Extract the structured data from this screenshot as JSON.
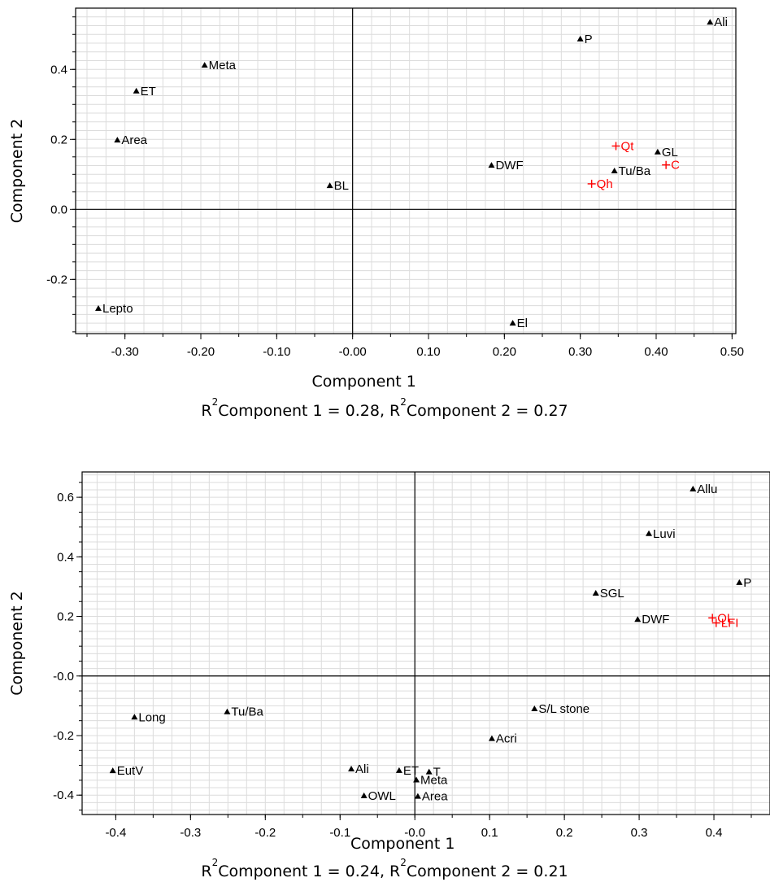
{
  "chart_data": [
    {
      "type": "scatter",
      "xlabel": "Component 1",
      "ylabel": "Component 2",
      "xlim": [
        -0.365,
        0.505
      ],
      "ylim": [
        -0.355,
        0.575
      ],
      "xticks": [
        "-0.30",
        "-0.20",
        "-0.10",
        "-0.00",
        "0.10",
        "0.20",
        "0.30",
        "0.40",
        "0.50"
      ],
      "xtick_values": [
        -0.3,
        -0.2,
        -0.1,
        0.0,
        0.1,
        0.2,
        0.3,
        0.4,
        0.5
      ],
      "yticks": [
        "0.4",
        "0.2",
        "0.0",
        "-0.2"
      ],
      "ytick_values": [
        0.4,
        0.2,
        0.0,
        -0.2
      ],
      "grid": true,
      "caption": {
        "r": "R",
        "sup": "2",
        "part1": "Component 1 = 0.28, R",
        "sup2": "2",
        "part2": "Component 2 = 0.27"
      },
      "series": [
        {
          "marker": "triangle",
          "color": "#000000",
          "points": [
            {
              "label": "Ali",
              "x": 0.471,
              "y": 0.535
            },
            {
              "label": "P",
              "x": 0.3,
              "y": 0.487
            },
            {
              "label": "Meta",
              "x": -0.195,
              "y": 0.412
            },
            {
              "label": "ET",
              "x": -0.285,
              "y": 0.338
            },
            {
              "label": "Area",
              "x": -0.31,
              "y": 0.198
            },
            {
              "label": "GL",
              "x": 0.402,
              "y": 0.164
            },
            {
              "label": "DWF",
              "x": 0.183,
              "y": 0.126
            },
            {
              "label": "Tu/Ba",
              "x": 0.345,
              "y": 0.11
            },
            {
              "label": "BL",
              "x": -0.03,
              "y": 0.068
            },
            {
              "label": "Lepto",
              "x": -0.335,
              "y": -0.283
            },
            {
              "label": "El",
              "x": 0.211,
              "y": -0.325
            }
          ]
        },
        {
          "marker": "plus",
          "color": "#ff0000",
          "points": [
            {
              "label": "Qt",
              "x": 0.347,
              "y": 0.181
            },
            {
              "label": "C",
              "x": 0.413,
              "y": 0.127
            },
            {
              "label": "Qh",
              "x": 0.315,
              "y": 0.073
            }
          ]
        }
      ]
    },
    {
      "type": "scatter",
      "xlabel": "Component 1",
      "ylabel": "Component 2",
      "xlim": [
        -0.445,
        0.475
      ],
      "ylim": [
        -0.465,
        0.685
      ],
      "xticks": [
        "-0.4",
        "-0.3",
        "-0.2",
        "-0.1",
        "-0.0",
        "0.1",
        "0.2",
        "0.3",
        "0.4"
      ],
      "xtick_values": [
        -0.4,
        -0.3,
        -0.2,
        -0.1,
        0.0,
        0.1,
        0.2,
        0.3,
        0.4
      ],
      "yticks": [
        "0.6",
        "0.4",
        "0.2",
        "-0.0",
        "-0.2",
        "-0.4"
      ],
      "ytick_values": [
        0.6,
        0.4,
        0.2,
        0.0,
        -0.2,
        -0.4
      ],
      "grid": true,
      "caption": {
        "r": "R",
        "sup": "2",
        "part1": "Component 1 = 0.24, R",
        "sup2": "2",
        "part2": "Component 2 = 0.21"
      },
      "series": [
        {
          "marker": "triangle",
          "color": "#000000",
          "points": [
            {
              "label": "Allu",
              "x": 0.372,
              "y": 0.628
            },
            {
              "label": "Luvi",
              "x": 0.313,
              "y": 0.478
            },
            {
              "label": "P",
              "x": 0.434,
              "y": 0.314
            },
            {
              "label": "SGL",
              "x": 0.242,
              "y": 0.278
            },
            {
              "label": "DWF",
              "x": 0.298,
              "y": 0.19
            },
            {
              "label": "S/L stone",
              "x": 0.16,
              "y": -0.11
            },
            {
              "label": "Acri",
              "x": 0.103,
              "y": -0.21
            },
            {
              "label": "Tu/Ba",
              "x": -0.251,
              "y": -0.12
            },
            {
              "label": "Long",
              "x": -0.375,
              "y": -0.138
            },
            {
              "label": "EutV",
              "x": -0.404,
              "y": -0.318
            },
            {
              "label": "Ali",
              "x": -0.085,
              "y": -0.312
            },
            {
              "label": "ET",
              "x": -0.021,
              "y": -0.317
            },
            {
              "label": "T",
              "x": 0.019,
              "y": -0.322
            },
            {
              "label": "Meta",
              "x": 0.002,
              "y": -0.349
            },
            {
              "label": "OWL",
              "x": -0.068,
              "y": -0.402
            },
            {
              "label": "Area",
              "x": 0.004,
              "y": -0.404
            }
          ]
        },
        {
          "marker": "plus",
          "color": "#ff0000",
          "points": [
            {
              "label": "QL",
              "x": 0.398,
              "y": 0.195
            },
            {
              "label": "LFI",
              "x": 0.403,
              "y": 0.178
            }
          ]
        }
      ]
    }
  ]
}
